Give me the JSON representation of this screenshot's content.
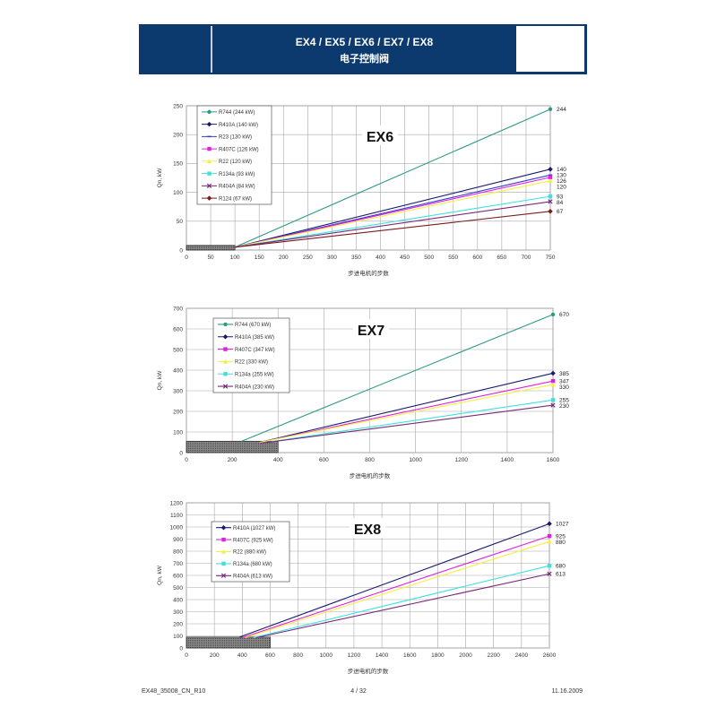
{
  "header": {
    "title": "EX4 / EX5 / EX6 / EX7 / EX8",
    "subtitle": "电子控制阀"
  },
  "footer": {
    "doc_id": "EX48_35008_CN_R10",
    "page": "4 / 32",
    "date": "11.16.2009"
  },
  "chart_data": [
    {
      "type": "line",
      "title": "EX6",
      "xlabel": "步进电机的步数",
      "ylabel": "Qn, kW",
      "xlim": [
        0,
        750
      ],
      "ylim": [
        0,
        250
      ],
      "xticks": [
        0,
        50,
        100,
        150,
        200,
        250,
        300,
        350,
        400,
        450,
        500,
        550,
        600,
        650,
        700,
        750
      ],
      "yticks": [
        0,
        50,
        100,
        150,
        200,
        250
      ],
      "grid": true,
      "legend_position": "top-left",
      "shaded_region": {
        "x": [
          0,
          100
        ],
        "y": [
          0,
          8
        ]
      },
      "series": [
        {
          "name": "R744 (244 kW)",
          "color": "#2e9a86",
          "marker": "circle",
          "x": [
            100,
            750
          ],
          "y": [
            5,
            244
          ],
          "end_label": "244"
        },
        {
          "name": "R410A (140 kW)",
          "color": "#1b1b6e",
          "marker": "diamond",
          "x": [
            100,
            750
          ],
          "y": [
            5,
            140
          ],
          "end_label": "140"
        },
        {
          "name": "R23 (130 kW)",
          "color": "#3a3ad0",
          "marker": "dash",
          "x": [
            100,
            750
          ],
          "y": [
            5,
            130
          ],
          "end_label": "130"
        },
        {
          "name": "R407C (126 kW)",
          "color": "#e020e0",
          "marker": "square",
          "x": [
            100,
            750
          ],
          "y": [
            5,
            126
          ],
          "end_label": "126"
        },
        {
          "name": "R22 (120 kW)",
          "color": "#f4f040",
          "marker": "triangle",
          "x": [
            100,
            750
          ],
          "y": [
            5,
            120
          ],
          "end_label": "120"
        },
        {
          "name": "R134a (93 kW)",
          "color": "#40e0e0",
          "marker": "square",
          "x": [
            100,
            750
          ],
          "y": [
            5,
            93
          ],
          "end_label": "93"
        },
        {
          "name": "R404A (84 kW)",
          "color": "#7a2a7a",
          "marker": "x",
          "x": [
            100,
            750
          ],
          "y": [
            5,
            84
          ],
          "end_label": "84"
        },
        {
          "name": "R124 (67 kW)",
          "color": "#7a1a1a",
          "marker": "diamond",
          "x": [
            100,
            750
          ],
          "y": [
            5,
            67
          ],
          "end_label": "67"
        }
      ]
    },
    {
      "type": "line",
      "title": "EX7",
      "xlabel": "步进电机的步数",
      "ylabel": "Qn, kW",
      "xlim": [
        0,
        1600
      ],
      "ylim": [
        0,
        700
      ],
      "xticks": [
        0,
        200,
        400,
        600,
        800,
        1000,
        1200,
        1400,
        1600
      ],
      "yticks": [
        0,
        100,
        200,
        300,
        400,
        500,
        600,
        700
      ],
      "grid": true,
      "legend_position": "top-left",
      "shaded_region": {
        "x": [
          0,
          400
        ],
        "y": [
          0,
          55
        ]
      },
      "series": [
        {
          "name": "R744 (670 kW)",
          "color": "#2e9a86",
          "marker": "circle",
          "x": [
            240,
            1600
          ],
          "y": [
            55,
            670
          ],
          "end_label": "670"
        },
        {
          "name": "R410A (385 kW)",
          "color": "#1b1b6e",
          "marker": "diamond",
          "x": [
            320,
            1600
          ],
          "y": [
            50,
            385
          ],
          "end_label": "385"
        },
        {
          "name": "R407C (347 kW)",
          "color": "#e020e0",
          "marker": "square",
          "x": [
            320,
            1600
          ],
          "y": [
            50,
            347
          ],
          "end_label": "347"
        },
        {
          "name": "R22 (330 kW)",
          "color": "#f4f040",
          "marker": "triangle",
          "x": [
            320,
            1600
          ],
          "y": [
            50,
            330
          ],
          "end_label": "330"
        },
        {
          "name": "R134a (255 kW)",
          "color": "#40e0e0",
          "marker": "square",
          "x": [
            320,
            1600
          ],
          "y": [
            45,
            255
          ],
          "end_label": "255"
        },
        {
          "name": "R404A (230 kW)",
          "color": "#7a2a7a",
          "marker": "x",
          "x": [
            320,
            1600
          ],
          "y": [
            45,
            230
          ],
          "end_label": "230"
        }
      ]
    },
    {
      "type": "line",
      "title": "EX8",
      "xlabel": "步进电机的步数",
      "ylabel": "Qn, kW",
      "xlim": [
        0,
        2600
      ],
      "ylim": [
        0,
        1200
      ],
      "xticks": [
        0,
        200,
        400,
        600,
        800,
        1000,
        1200,
        1400,
        1600,
        1800,
        2000,
        2200,
        2400,
        2600
      ],
      "yticks": [
        0,
        100,
        200,
        300,
        400,
        500,
        600,
        700,
        800,
        900,
        1000,
        1100,
        1200
      ],
      "grid": true,
      "legend_position": "top-left",
      "shaded_region": {
        "x": [
          0,
          600
        ],
        "y": [
          0,
          90
        ]
      },
      "series": [
        {
          "name": "R410A (1027 kW)",
          "color": "#1b1b6e",
          "marker": "diamond",
          "x": [
            380,
            2600
          ],
          "y": [
            90,
            1027
          ],
          "end_label": "1027"
        },
        {
          "name": "R407C (925 kW)",
          "color": "#e020e0",
          "marker": "square",
          "x": [
            400,
            2600
          ],
          "y": [
            85,
            925
          ],
          "end_label": "925"
        },
        {
          "name": "R22 (880 kW)",
          "color": "#f4f040",
          "marker": "triangle",
          "x": [
            420,
            2600
          ],
          "y": [
            85,
            880
          ],
          "end_label": "880"
        },
        {
          "name": "R134a (680 kW)",
          "color": "#40e0e0",
          "marker": "square",
          "x": [
            480,
            2600
          ],
          "y": [
            85,
            680
          ],
          "end_label": "680"
        },
        {
          "name": "R404A (613 kW)",
          "color": "#7a2a7a",
          "marker": "x",
          "x": [
            500,
            2600
          ],
          "y": [
            85,
            613
          ],
          "end_label": "613"
        }
      ]
    }
  ]
}
